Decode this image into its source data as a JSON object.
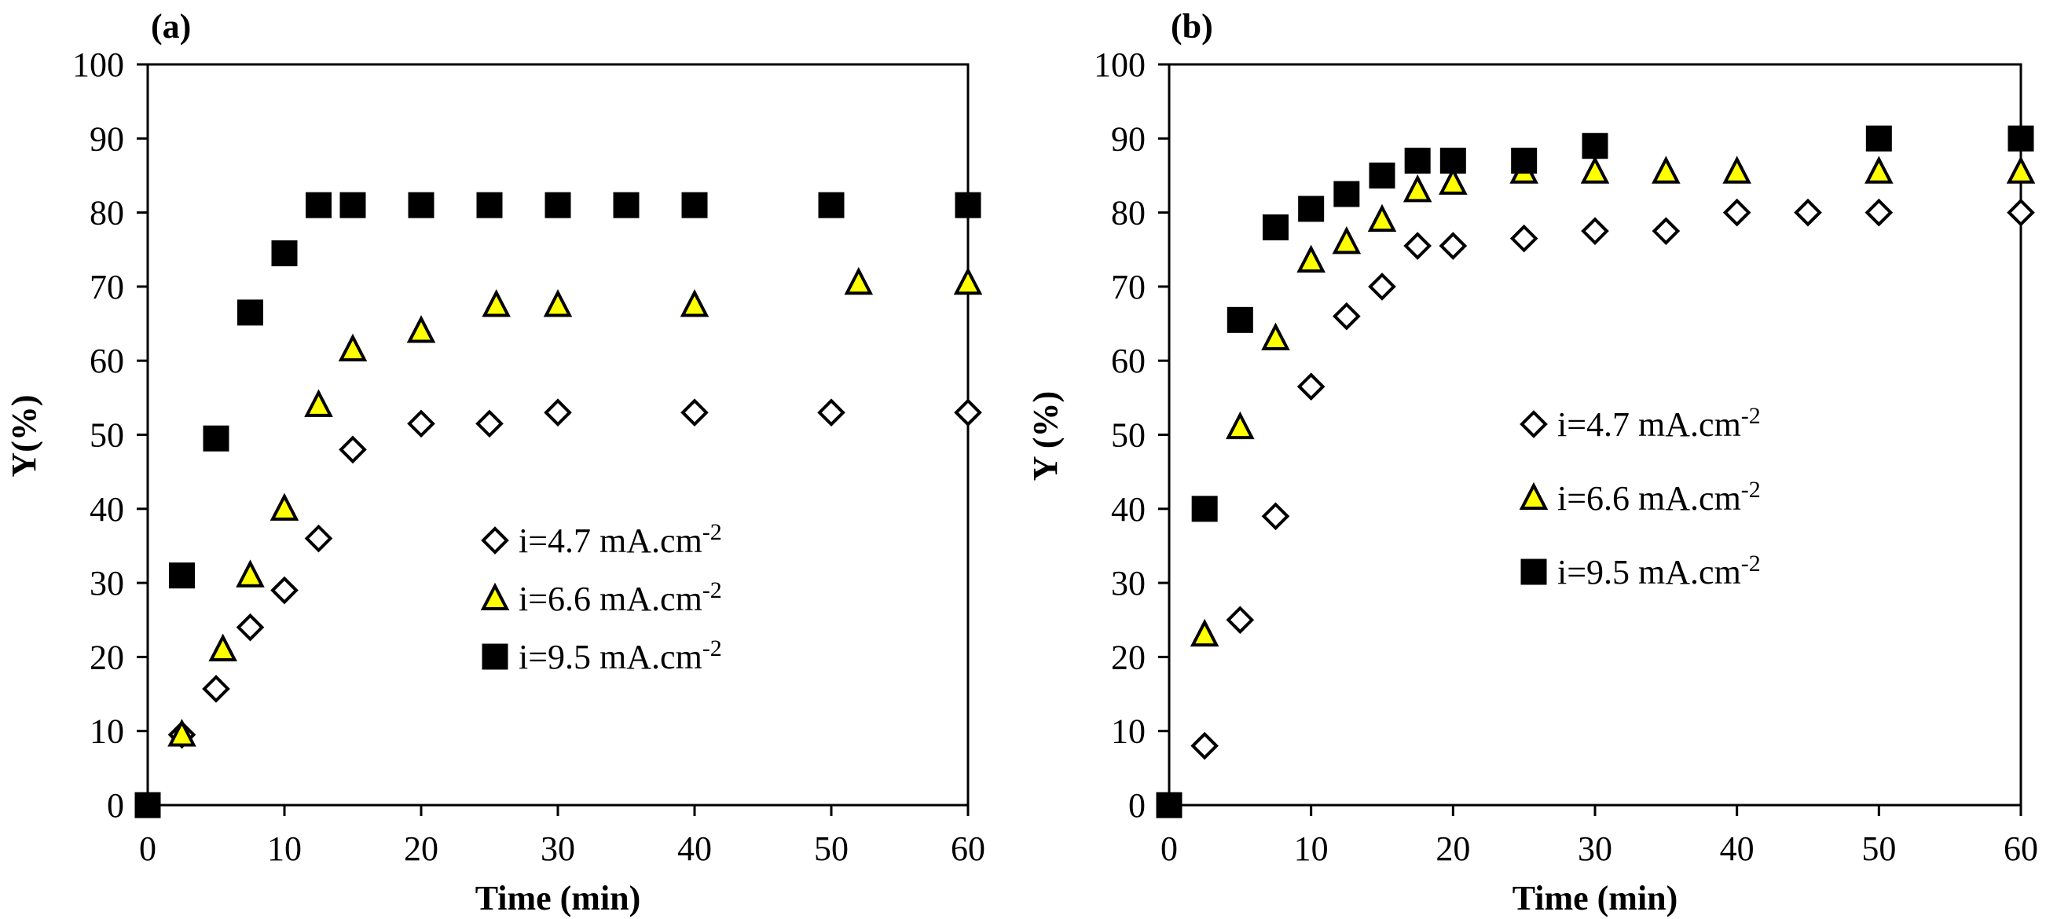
{
  "chart_data": [
    {
      "type": "scatter",
      "panel_label": "(a)",
      "xlabel": "Time (min)",
      "ylabel": "Y(%)",
      "xlim": [
        0,
        60
      ],
      "ylim": [
        0,
        100
      ],
      "xticks": [
        "0",
        "10",
        "20",
        "30",
        "40",
        "50",
        "60"
      ],
      "yticks": [
        "0",
        "10",
        "20",
        "30",
        "40",
        "50",
        "60",
        "70",
        "80",
        "90",
        "100"
      ],
      "legend_position": "lower-right",
      "series": [
        {
          "name": "i=4.7 mA.cm-2",
          "marker": "diamond",
          "x": [
            2.5,
            5,
            7.5,
            10,
            12.5,
            15,
            20,
            25,
            30,
            40,
            50,
            60
          ],
          "y": [
            9.5,
            15.7,
            24,
            29,
            36,
            48,
            51.5,
            51.5,
            53,
            53,
            53,
            53
          ]
        },
        {
          "name": "i=6.6 mA.cm-2",
          "marker": "triangle",
          "x": [
            2.5,
            5.5,
            7.5,
            10,
            12.5,
            15,
            20,
            25.5,
            30,
            40,
            52,
            60
          ],
          "y": [
            9.5,
            21,
            31,
            40,
            54,
            61.5,
            64,
            67.5,
            67.5,
            67.5,
            70.5,
            70.5
          ]
        },
        {
          "name": "i=9.5 mA.cm-2",
          "marker": "square",
          "x": [
            0,
            2.5,
            5,
            7.5,
            10,
            12.5,
            15,
            20,
            25,
            30,
            35,
            40,
            50,
            60
          ],
          "y": [
            0,
            31,
            49.5,
            66.5,
            74.5,
            81,
            81,
            81,
            81,
            81,
            81,
            81,
            81,
            81
          ]
        }
      ]
    },
    {
      "type": "scatter",
      "panel_label": "(b)",
      "xlabel": "Time (min)",
      "ylabel": "Y (%)",
      "xlim": [
        0,
        60
      ],
      "ylim": [
        0,
        100
      ],
      "xticks": [
        "0",
        "10",
        "20",
        "30",
        "40",
        "50",
        "60"
      ],
      "yticks": [
        "0",
        "10",
        "20",
        "30",
        "40",
        "50",
        "60",
        "70",
        "80",
        "90",
        "100"
      ],
      "legend_position": "center-right",
      "series": [
        {
          "name": "i=4.7 mA.cm-2",
          "marker": "diamond",
          "x": [
            2.5,
            5,
            7.5,
            10,
            12.5,
            15,
            17.5,
            20,
            25,
            30,
            35,
            40,
            45,
            50,
            60
          ],
          "y": [
            8,
            25,
            39,
            56.5,
            66,
            70,
            75.5,
            75.5,
            76.5,
            77.5,
            77.5,
            80,
            80,
            80,
            80
          ]
        },
        {
          "name": "i=6.6 mA.cm-2",
          "marker": "triangle",
          "x": [
            2.5,
            5,
            7.5,
            10,
            12.5,
            15,
            17.5,
            20,
            25,
            30,
            35,
            40,
            50,
            60
          ],
          "y": [
            23,
            51,
            63,
            73.5,
            76,
            79,
            83,
            84,
            85.5,
            85.5,
            85.5,
            85.5,
            85.5,
            85.5
          ]
        },
        {
          "name": "i=9.5 mA.cm-2",
          "marker": "square",
          "x": [
            0,
            2.5,
            5,
            7.5,
            10,
            12.5,
            15,
            17.5,
            20,
            25,
            30,
            50,
            60
          ],
          "y": [
            0,
            40,
            65.5,
            78,
            80.5,
            82.5,
            85,
            87,
            87,
            87,
            89,
            90,
            90
          ]
        }
      ]
    }
  ],
  "colors": {
    "triangle_fill": "#ffff00",
    "square_fill": "#000000",
    "diamond_fill": "#ffffff",
    "stroke": "#000000"
  }
}
